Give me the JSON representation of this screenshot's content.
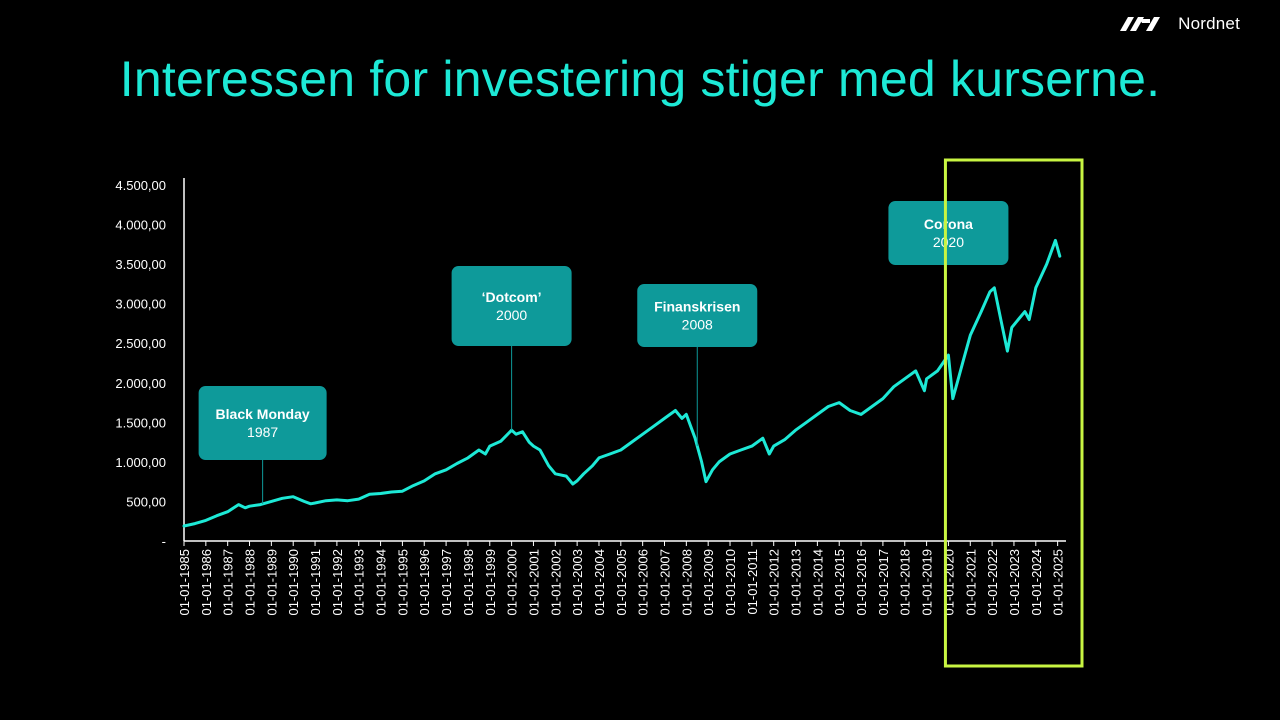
{
  "header": {
    "brand": "Nordnet",
    "title": "Interessen for investering stiger med kurserne."
  },
  "colors": {
    "background": "#000000",
    "title": "#1de9d6",
    "line": "#1de9d6",
    "callout": "#0e9a9a",
    "highlight": "#c8f542"
  },
  "chart_data": {
    "type": "line",
    "title": "",
    "xlabel": "",
    "ylabel": "",
    "ylim": [
      0,
      4500
    ],
    "yticks": [
      {
        "value": 0,
        "label": "-"
      },
      {
        "value": 500,
        "label": "500,00"
      },
      {
        "value": 1000,
        "label": "1.000,00"
      },
      {
        "value": 1500,
        "label": "1.500,00"
      },
      {
        "value": 2000,
        "label": "2.000,00"
      },
      {
        "value": 2500,
        "label": "2.500,00"
      },
      {
        "value": 3000,
        "label": "3.000,00"
      },
      {
        "value": 3500,
        "label": "3.500,00"
      },
      {
        "value": 4000,
        "label": "4.000,00"
      },
      {
        "value": 4500,
        "label": "4.500,00"
      }
    ],
    "xticks": [
      "01-01-1985",
      "01-01-1986",
      "01-01-1987",
      "01-01-1988",
      "01-01-1989",
      "01-01-1990",
      "01-01-1991",
      "01-01-1992",
      "01-01-1993",
      "01-01-1994",
      "01-01-1995",
      "01-01-1996",
      "01-01-1997",
      "01-01-1998",
      "01-01-1999",
      "01-01-2000",
      "01-01-2001",
      "01-01-2002",
      "01-01-2003",
      "01-01-2004",
      "01-01-2005",
      "01-01-2006",
      "01-01-2007",
      "01-01-2008",
      "01-01-2009",
      "01-01-2010",
      "01-01-2011",
      "01-01-2012",
      "01-01-2013",
      "01-01-2014",
      "01-01-2015",
      "01-01-2016",
      "01-01-2017",
      "01-01-2018",
      "01-01-2019",
      "01-01-2020",
      "01-01-2021",
      "01-01-2022",
      "01-01-2023",
      "01-01-2024",
      "01-01-2025"
    ],
    "xlim": [
      1985.0,
      2025.2
    ],
    "series": [
      {
        "x": [
          1985.0,
          1985.5,
          1986.0,
          1986.5,
          1987.0,
          1987.5,
          1987.8,
          1988.0,
          1988.5,
          1989.0,
          1989.5,
          1990.0,
          1990.5,
          1990.8,
          1991.0,
          1991.5,
          1992.0,
          1992.5,
          1993.0,
          1993.5,
          1994.0,
          1994.5,
          1995.0,
          1995.5,
          1996.0,
          1996.5,
          1997.0,
          1997.5,
          1998.0,
          1998.5,
          1998.8,
          1999.0,
          1999.5,
          2000.0,
          2000.2,
          2000.5,
          2000.8,
          2001.0,
          2001.3,
          2001.7,
          2002.0,
          2002.5,
          2002.8,
          2003.0,
          2003.3,
          2003.7,
          2004.0,
          2004.5,
          2005.0,
          2005.5,
          2006.0,
          2006.5,
          2007.0,
          2007.5,
          2007.8,
          2008.0,
          2008.4,
          2008.7,
          2008.9,
          2009.2,
          2009.5,
          2010.0,
          2010.5,
          2011.0,
          2011.5,
          2011.8,
          2012.0,
          2012.5,
          2013.0,
          2013.5,
          2014.0,
          2014.5,
          2015.0,
          2015.5,
          2016.0,
          2016.5,
          2017.0,
          2017.5,
          2018.0,
          2018.5,
          2018.9,
          2019.0,
          2019.5,
          2020.0,
          2020.2,
          2020.4,
          2020.7,
          2021.0,
          2021.5,
          2021.9,
          2022.1,
          2022.4,
          2022.7,
          2022.9,
          2023.2,
          2023.5,
          2023.7,
          2024.0,
          2024.5,
          2024.9,
          2025.1
        ],
        "y": [
          190,
          220,
          260,
          320,
          370,
          460,
          420,
          440,
          460,
          500,
          540,
          560,
          500,
          470,
          480,
          510,
          520,
          510,
          530,
          590,
          600,
          620,
          630,
          700,
          760,
          850,
          900,
          980,
          1050,
          1150,
          1100,
          1200,
          1260,
          1400,
          1350,
          1380,
          1250,
          1200,
          1150,
          950,
          850,
          820,
          720,
          760,
          850,
          950,
          1050,
          1100,
          1150,
          1250,
          1350,
          1450,
          1550,
          1650,
          1550,
          1600,
          1300,
          1000,
          750,
          900,
          1000,
          1100,
          1150,
          1200,
          1300,
          1100,
          1200,
          1280,
          1400,
          1500,
          1600,
          1700,
          1750,
          1650,
          1600,
          1700,
          1800,
          1950,
          2050,
          2150,
          1900,
          2050,
          2150,
          2350,
          1800,
          2000,
          2300,
          2600,
          2900,
          3150,
          3200,
          2800,
          2400,
          2700,
          2800,
          2900,
          2800,
          3200,
          3500,
          3800,
          3600
        ]
      }
    ],
    "annotations": [
      {
        "title": "Black Monday",
        "subtitle": "1987",
        "x": 1988.6
      },
      {
        "title": "‘Dotcom’",
        "subtitle": "2000",
        "x": 2000.0
      },
      {
        "title": "Finanskrisen",
        "subtitle": "2008",
        "x": 2008.5
      },
      {
        "title": "Corona",
        "subtitle": "2020",
        "x": 2020.0
      }
    ],
    "highlight": {
      "x_from": 2020.0,
      "x_to": 2025.2
    },
    "grid": false,
    "legend": "none"
  }
}
